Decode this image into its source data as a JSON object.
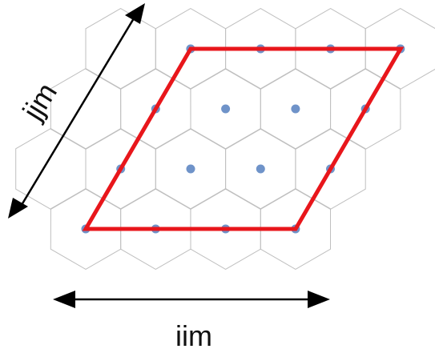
{
  "labels": {
    "x_axis": "iim",
    "y_axis": "jjm"
  },
  "colors": {
    "background": "#ffffff",
    "hex_stroke": "#bfbfbf",
    "dot": "#6f93c9",
    "parallelogram": "#e8161b",
    "arrow": "#000000",
    "text": "#111111"
  },
  "lattice": {
    "hex_rows": 4,
    "hex_cols": 5,
    "dots_per_side": 4
  }
}
